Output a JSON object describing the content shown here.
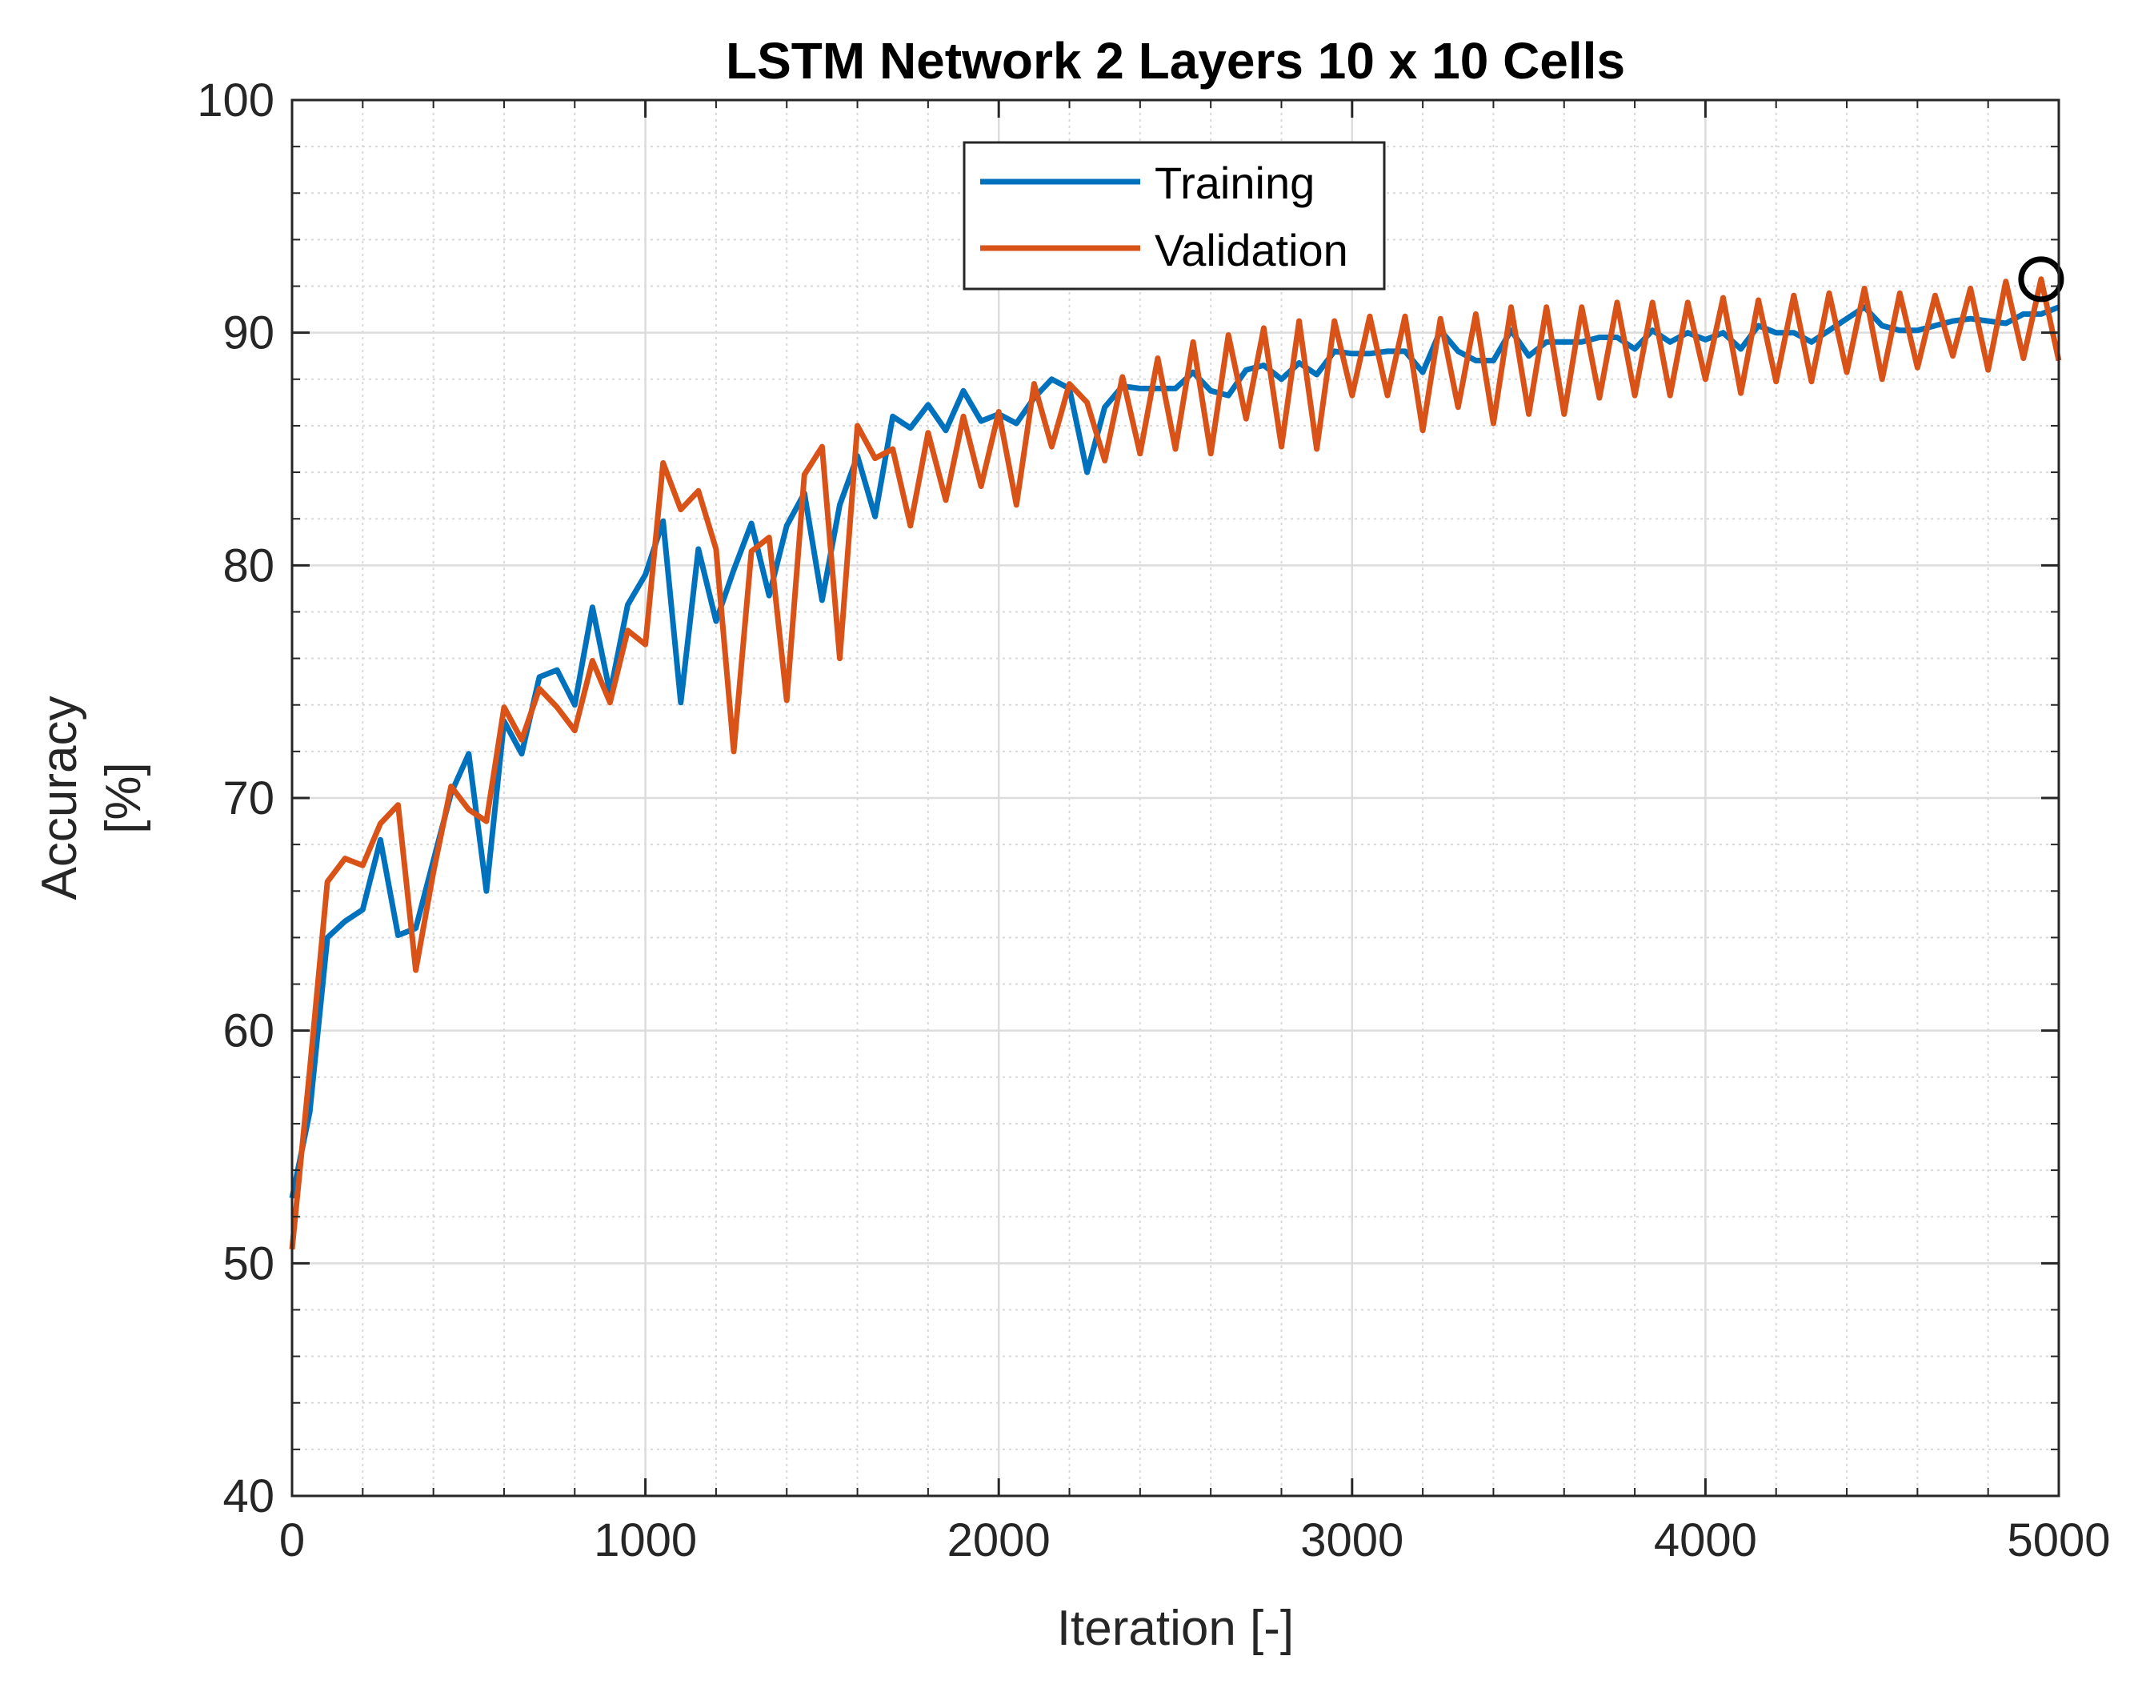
{
  "chart_data": {
    "type": "line",
    "title": "LSTM Network 2 Layers 10 x 10 Cells",
    "xlabel": "Iteration [-]",
    "ylabel_line1": "Accuracy",
    "ylabel_line2": "[%]",
    "xlim": [
      0,
      5000
    ],
    "ylim": [
      40,
      100
    ],
    "xticks": [
      "0",
      "1000",
      "2000",
      "3000",
      "4000",
      "5000"
    ],
    "yticks": [
      "40",
      "50",
      "60",
      "70",
      "80",
      "90",
      "100"
    ],
    "grid": "major and minor",
    "legend_position": "top-center",
    "series": [
      {
        "name": "Training",
        "color": "#0072BD",
        "x": [
          0,
          50,
          100,
          150,
          200,
          250,
          300,
          350,
          400,
          450,
          500,
          550,
          600,
          650,
          700,
          750,
          800,
          850,
          900,
          950,
          1000,
          1050,
          1100,
          1150,
          1200,
          1250,
          1300,
          1350,
          1400,
          1450,
          1500,
          1550,
          1600,
          1650,
          1700,
          1750,
          1800,
          1850,
          1900,
          1950,
          2000,
          2050,
          2100,
          2150,
          2200,
          2250,
          2300,
          2350,
          2400,
          2450,
          2500,
          2550,
          2600,
          2650,
          2700,
          2750,
          2800,
          2850,
          2900,
          2950,
          3000,
          3050,
          3100,
          3150,
          3200,
          3250,
          3300,
          3350,
          3400,
          3450,
          3500,
          3550,
          3600,
          3650,
          3700,
          3750,
          3800,
          3850,
          3900,
          3950,
          4000,
          4050,
          4100,
          4150,
          4200,
          4250,
          4300,
          4350,
          4400,
          4450,
          4500,
          4550,
          4600,
          4650,
          4700,
          4750,
          4800,
          4850,
          4900,
          4950,
          5000
        ],
        "y": [
          52.8,
          56.5,
          64,
          64.7,
          65.2,
          68.2,
          64.1,
          64.4,
          67.3,
          70.2,
          71.9,
          66,
          73.3,
          71.9,
          75.2,
          75.5,
          74,
          78.2,
          74.5,
          78.3,
          79.6,
          81.9,
          74.1,
          80.7,
          77.6,
          79.8,
          81.8,
          78.7,
          81.7,
          83.1,
          78.5,
          82.6,
          84.7,
          82.1,
          86.4,
          85.9,
          86.9,
          85.8,
          87.5,
          86.2,
          86.5,
          86.1,
          87.2,
          88,
          87.6,
          84,
          86.8,
          87.7,
          87.6,
          87.6,
          87.6,
          88.3,
          87.5,
          87.3,
          88.4,
          88.6,
          88,
          88.7,
          88.2,
          89.2,
          89.1,
          89.1,
          89.2,
          89.2,
          88.3,
          90.1,
          89.2,
          88.8,
          88.8,
          90.1,
          89,
          89.6,
          89.6,
          89.6,
          89.8,
          89.8,
          89.3,
          90.1,
          89.6,
          90,
          89.7,
          90,
          89.3,
          90.3,
          90,
          90,
          89.6,
          90.1,
          90.6,
          91.1,
          90.3,
          90.1,
          90.1,
          90.3,
          90.5,
          90.6,
          90.5,
          90.4,
          90.8,
          90.8,
          91.1
        ],
        "marker": {
          "x": 4950,
          "y": 92.3,
          "style": "circle"
        }
      },
      {
        "name": "Validation",
        "color": "#D95319",
        "x": [
          0,
          50,
          100,
          150,
          200,
          250,
          300,
          350,
          400,
          450,
          500,
          550,
          600,
          650,
          700,
          750,
          800,
          850,
          900,
          950,
          1000,
          1050,
          1100,
          1150,
          1200,
          1250,
          1300,
          1350,
          1400,
          1450,
          1500,
          1550,
          1600,
          1650,
          1700,
          1750,
          1800,
          1850,
          1900,
          1950,
          2000,
          2050,
          2100,
          2150,
          2200,
          2250,
          2300,
          2350,
          2400,
          2450,
          2500,
          2550,
          2600,
          2650,
          2700,
          2750,
          2800,
          2850,
          2900,
          2950,
          3000,
          3050,
          3100,
          3150,
          3200,
          3250,
          3300,
          3350,
          3400,
          3450,
          3500,
          3550,
          3600,
          3650,
          3700,
          3750,
          3800,
          3850,
          3900,
          3950,
          4000,
          4050,
          4100,
          4150,
          4200,
          4250,
          4300,
          4350,
          4400,
          4450,
          4500,
          4550,
          4600,
          4650,
          4700,
          4750,
          4800,
          4850,
          4900,
          4950,
          5000
        ],
        "y": [
          50.6,
          58.3,
          66.4,
          67.4,
          67.1,
          68.9,
          69.7,
          62.6,
          66.8,
          70.5,
          69.5,
          69,
          73.9,
          72.5,
          74.7,
          73.9,
          72.9,
          75.9,
          74.1,
          77.2,
          76.6,
          84.4,
          82.4,
          83.2,
          80.7,
          72,
          80.6,
          81.2,
          74.2,
          83.9,
          85.1,
          76,
          86,
          84.6,
          85,
          81.7,
          85.7,
          82.8,
          86.4,
          83.4,
          86.6,
          82.6,
          87.8,
          85.1,
          87.8,
          87,
          84.5,
          88.1,
          84.8,
          88.9,
          85,
          89.6,
          84.8,
          89.9,
          86.3,
          90.2,
          85.1,
          90.5,
          85,
          90.5,
          87.3,
          90.7,
          87.3,
          90.7,
          85.8,
          90.6,
          86.8,
          90.8,
          86.1,
          91.1,
          86.5,
          91.1,
          86.5,
          91.1,
          87.2,
          91.3,
          87.3,
          91.3,
          87.3,
          91.3,
          88,
          91.5,
          87.4,
          91.4,
          87.9,
          91.6,
          87.9,
          91.7,
          88.3,
          91.9,
          88,
          91.7,
          88.5,
          91.6,
          89,
          91.9,
          88.4,
          92.2,
          88.9,
          92.3,
          88.8
        ]
      }
    ]
  }
}
